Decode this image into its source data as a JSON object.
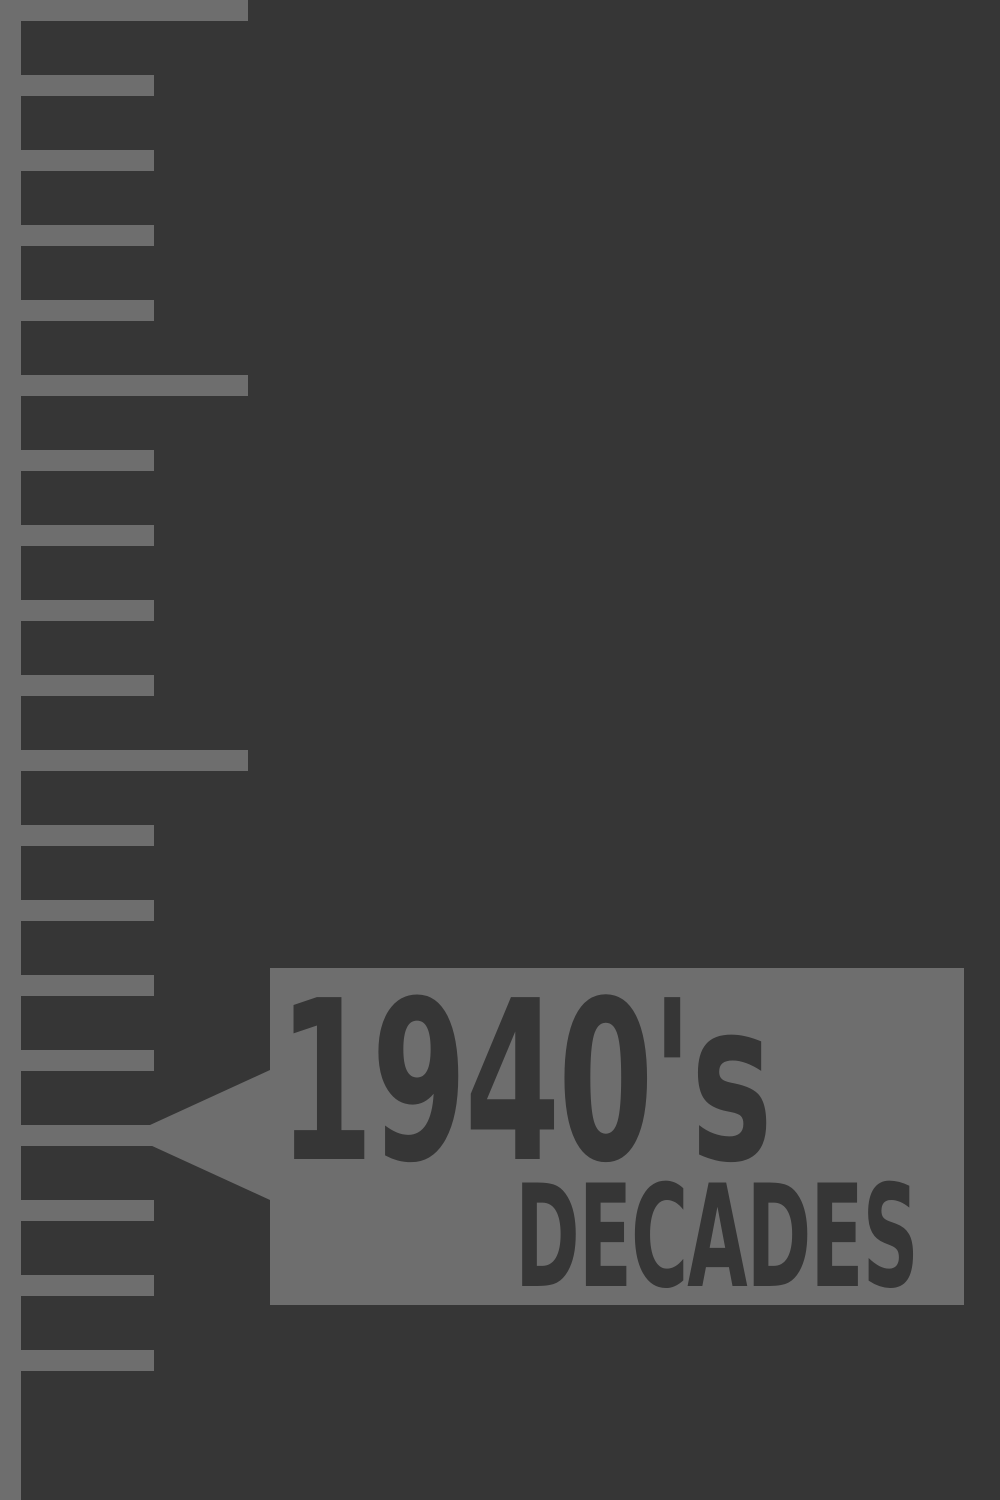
{
  "cover": {
    "year": "1940's",
    "subtitle": "DECADES"
  },
  "colors": {
    "background": "#363636",
    "ruler": "#6e6e6e",
    "label_box": "#6e6e6e",
    "text": "#363636"
  },
  "ruler": {
    "tick_count": 19,
    "major_every": 5,
    "pointer_tick": 15
  }
}
